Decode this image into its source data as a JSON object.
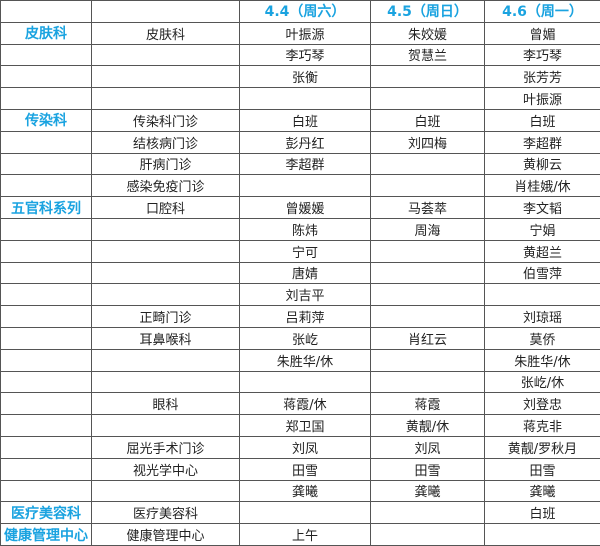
{
  "header": [
    "",
    "",
    "4.4（周六）",
    "4.5（周日）",
    "4.6（周一）"
  ],
  "accent_color": "#1aa3e0",
  "rows": [
    [
      "皮肤科",
      "皮肤科",
      "叶振源",
      "朱姣媛",
      "曾媚"
    ],
    [
      "",
      "",
      "李巧琴",
      "贺慧兰",
      "李巧琴"
    ],
    [
      "",
      "",
      "张衡",
      "",
      "张芳芳"
    ],
    [
      "",
      "",
      "",
      "",
      "叶振源"
    ],
    [
      "传染科",
      "传染科门诊",
      "白班",
      "白班",
      "白班"
    ],
    [
      "",
      "结核病门诊",
      "彭丹红",
      "刘四梅",
      "李超群"
    ],
    [
      "",
      "肝病门诊",
      "李超群",
      "",
      "黄柳云"
    ],
    [
      "",
      "感染免疫门诊",
      "",
      "",
      "肖桂娥/休"
    ],
    [
      "五官科系列",
      "口腔科",
      "曾媛媛",
      "马荟萃",
      "李文韬"
    ],
    [
      "",
      "",
      "陈炜",
      "周海",
      "宁娟"
    ],
    [
      "",
      "",
      "宁可",
      "",
      "黄超兰"
    ],
    [
      "",
      "",
      "唐婧",
      "",
      "伯雪萍"
    ],
    [
      "",
      "",
      "刘吉平",
      "",
      ""
    ],
    [
      "",
      "正畸门诊",
      "吕莉萍",
      "",
      "刘琼瑶"
    ],
    [
      "",
      "耳鼻喉科",
      "张屹",
      "肖红云",
      "莫侨"
    ],
    [
      "",
      "",
      "朱胜华/休",
      "",
      "朱胜华/休"
    ],
    [
      "",
      "",
      "",
      "",
      "张屹/休"
    ],
    [
      "",
      "眼科",
      "蒋霞/休",
      "蒋霞",
      "刘登忠"
    ],
    [
      "",
      "",
      "郑卫国",
      "黄靓/休",
      "蒋克非"
    ],
    [
      "",
      "屈光手术门诊",
      "刘凤",
      "刘凤",
      "黄靓/罗秋月"
    ],
    [
      "",
      "视光学中心",
      "田雪",
      "田雪",
      "田雪"
    ],
    [
      "",
      "",
      "龚曦",
      "龚曦",
      "龚曦"
    ],
    [
      "医疗美容科",
      "医疗美容科",
      "",
      "",
      "白班"
    ],
    [
      "健康管理中心",
      "健康管理中心",
      "上午",
      "",
      ""
    ]
  ]
}
